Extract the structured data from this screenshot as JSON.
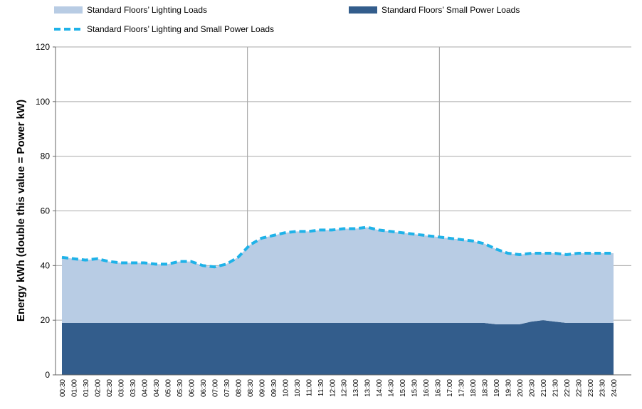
{
  "chart_data": {
    "type": "area",
    "stacked": true,
    "y_label": "Energy kWh (double this value = Power kW)",
    "categories": [
      "00:30",
      "01:00",
      "01:30",
      "02:00",
      "02:30",
      "03:00",
      "03:30",
      "04:00",
      "04:30",
      "05:00",
      "05:30",
      "06:00",
      "06:30",
      "07:00",
      "07:30",
      "08:00",
      "08:30",
      "09:00",
      "09:30",
      "10:00",
      "10:30",
      "11:00",
      "11:30",
      "12:00",
      "12:30",
      "13:00",
      "13:30",
      "14:00",
      "14:30",
      "15:00",
      "15:30",
      "16:00",
      "16:30",
      "17:00",
      "17:30",
      "18:00",
      "18:30",
      "19:00",
      "19:30",
      "20:00",
      "20:30",
      "21:00",
      "21:30",
      "22:00",
      "22:30",
      "23:00",
      "23:30",
      "24:00"
    ],
    "series": [
      {
        "name": "Standard Floors’ Lighting Loads",
        "type": "area",
        "color": "#b8cce4",
        "values": [
          24,
          23.5,
          23,
          23.5,
          22.5,
          22,
          22,
          22,
          21.5,
          21.5,
          22.5,
          22.5,
          21,
          20.5,
          21.5,
          24,
          28.5,
          31,
          32,
          33,
          33.5,
          33.5,
          34,
          34,
          34.5,
          34.5,
          35,
          34,
          33.5,
          33,
          32.5,
          32,
          31.5,
          31,
          30.5,
          30,
          29,
          27.5,
          26,
          25.5,
          25,
          24.5,
          25,
          25,
          25.5,
          25.5,
          25.5,
          25.5
        ]
      },
      {
        "name": "Standard Floors’ Small Power Loads",
        "type": "area",
        "color": "#335d8c",
        "values": [
          19,
          19,
          19,
          19,
          19,
          19,
          19,
          19,
          19,
          19,
          19,
          19,
          19,
          19,
          19,
          19,
          19,
          19,
          19,
          19,
          19,
          19,
          19,
          19,
          19,
          19,
          19,
          19,
          19,
          19,
          19,
          19,
          19,
          19,
          19,
          19,
          19,
          18.5,
          18.5,
          18.5,
          19.5,
          20,
          19.5,
          19,
          19,
          19,
          19,
          19
        ]
      },
      {
        "name": "Standard Floors’ Lighting and Small Power Loads",
        "type": "line",
        "dashed": true,
        "color": "#1fb2e8",
        "values": [
          43,
          42.5,
          42,
          42.5,
          41.5,
          41,
          41,
          41,
          40.5,
          40.5,
          41.5,
          41.5,
          40,
          39.5,
          40.5,
          43,
          47.5,
          50,
          51,
          52,
          52.5,
          52.5,
          53,
          53,
          53.5,
          53.5,
          54,
          53,
          52.5,
          52,
          51.5,
          51,
          50.5,
          50,
          49.5,
          49,
          48,
          46,
          44.5,
          44,
          44.5,
          44.5,
          44.5,
          44,
          44.5,
          44.5,
          44.5,
          44.5
        ]
      }
    ],
    "ylim": [
      0,
      120
    ],
    "yticks": [
      0,
      20,
      40,
      60,
      80,
      100,
      120
    ],
    "grid": true
  }
}
